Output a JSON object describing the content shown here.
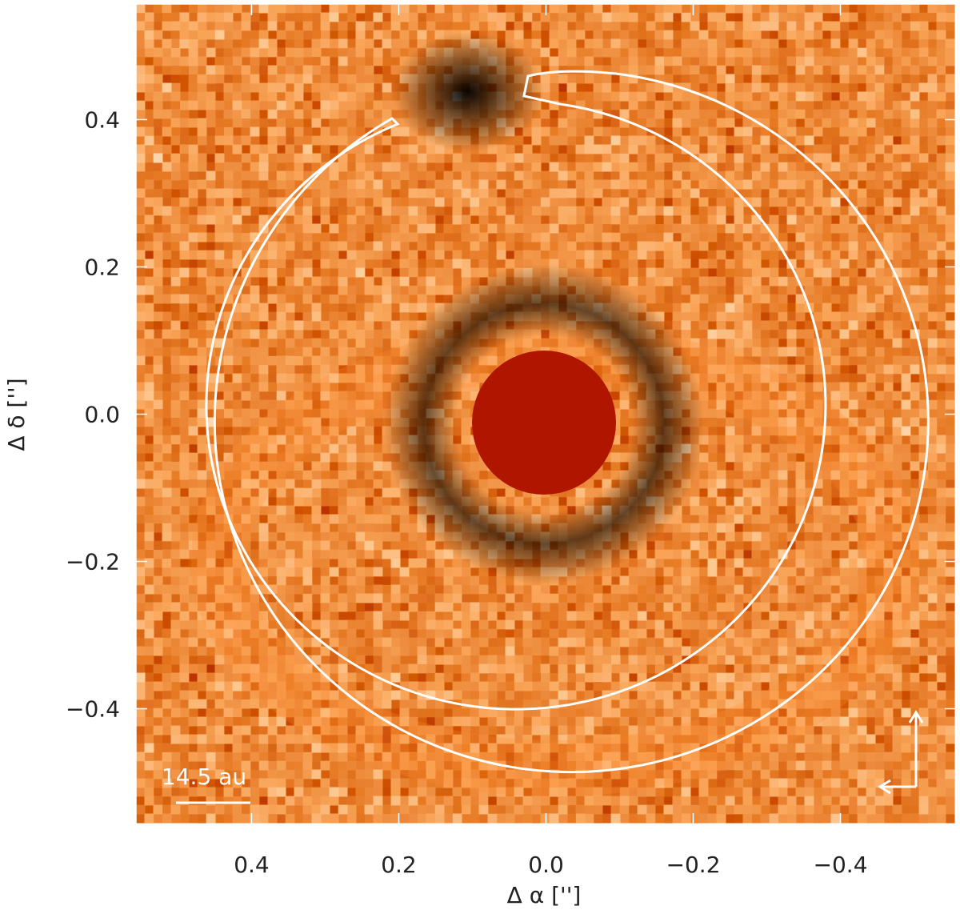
{
  "chart_data": {
    "type": "image",
    "xlabel": "Δ α ['']",
    "ylabel": "Δ δ ['']",
    "xlim": [
      0.557,
      -0.557
    ],
    "ylim": [
      -0.557,
      0.557
    ],
    "xticks": [
      0.4,
      0.2,
      {
        "value": 0,
        "label": "0.0"
      },
      {
        "value": -0.2,
        "label": "−0.2"
      },
      {
        "value": -0.4,
        "label": "−0.4"
      }
    ],
    "yticks": [
      0.4,
      0.2,
      {
        "value": 0,
        "label": "0.0"
      },
      {
        "value": -0.2,
        "label": "−0.2"
      },
      {
        "value": -0.4,
        "label": "−0.4"
      }
    ],
    "scale_bar_label": "14.5 au"
  }
}
